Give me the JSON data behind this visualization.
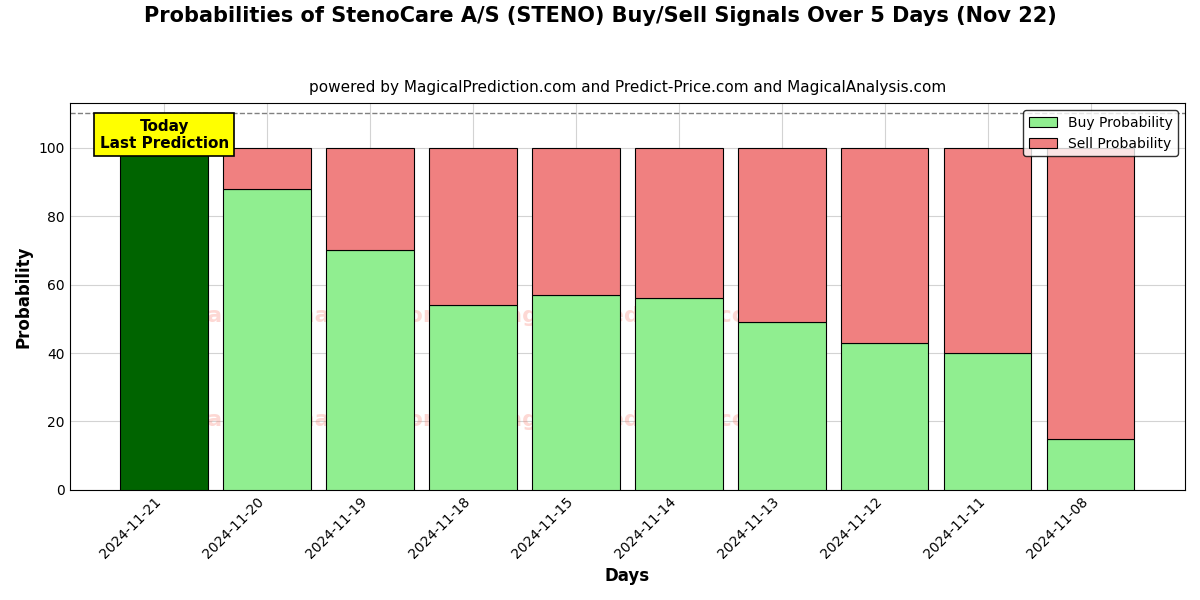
{
  "title": "Probabilities of StenoCare A/S (STENO) Buy/Sell Signals Over 5 Days (Nov 22)",
  "subtitle": "powered by MagicalPrediction.com and Predict-Price.com and MagicalAnalysis.com",
  "xlabel": "Days",
  "ylabel": "Probability",
  "categories": [
    "2024-11-21",
    "2024-11-20",
    "2024-11-19",
    "2024-11-18",
    "2024-11-15",
    "2024-11-14",
    "2024-11-13",
    "2024-11-12",
    "2024-11-11",
    "2024-11-08"
  ],
  "buy_values": [
    100,
    88,
    70,
    54,
    57,
    56,
    49,
    43,
    40,
    15
  ],
  "sell_values": [
    0,
    12,
    30,
    46,
    43,
    44,
    51,
    57,
    60,
    85
  ],
  "today_bar_color": "#006400",
  "buy_color": "#90EE90",
  "sell_color": "#F08080",
  "today_annotation_text": "Today\nLast Prediction",
  "today_annotation_bg": "#FFFF00",
  "legend_buy": "Buy Probability",
  "legend_sell": "Sell Probability",
  "ylim": [
    0,
    113
  ],
  "yticks": [
    0,
    20,
    40,
    60,
    80,
    100
  ],
  "dashed_line_y": 110,
  "title_fontsize": 15,
  "subtitle_fontsize": 11,
  "label_fontsize": 12,
  "bar_width": 0.85
}
